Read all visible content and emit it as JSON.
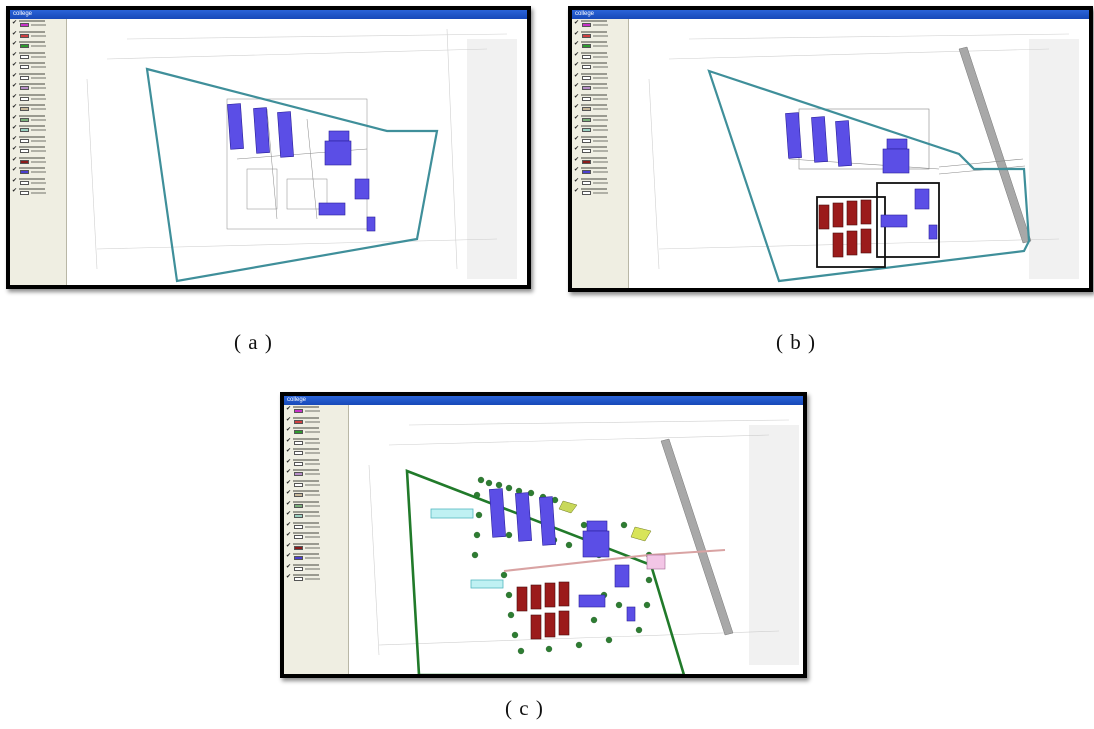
{
  "panels": [
    {
      "id": "a",
      "caption": "( a )",
      "window_title": "college"
    },
    {
      "id": "b",
      "caption": "( b )",
      "window_title": "college"
    },
    {
      "id": "c",
      "caption": "( c )",
      "window_title": "college"
    }
  ],
  "legend": {
    "swatch_colors": [
      "#c832c8",
      "#d04040",
      "#2e9a2e",
      "#ffffff",
      "#ffffff",
      "#ffffff",
      "#b88fc8",
      "#ffffff",
      "#c8b89a",
      "#7bb07b",
      "#9ad0c0",
      "#ffffff",
      "#ffffff",
      "#8b1a1a",
      "#4b3fd0",
      "#ffffff",
      "#ffffff"
    ]
  },
  "colors": {
    "titlebar": "#1f56c9",
    "building_purple": "#5b4ee6",
    "building_red": "#9b1b1b",
    "boundary_teal": "#3f8f9a",
    "boundary_green": "#217a2a",
    "road_gray": "#9a9a9a"
  }
}
